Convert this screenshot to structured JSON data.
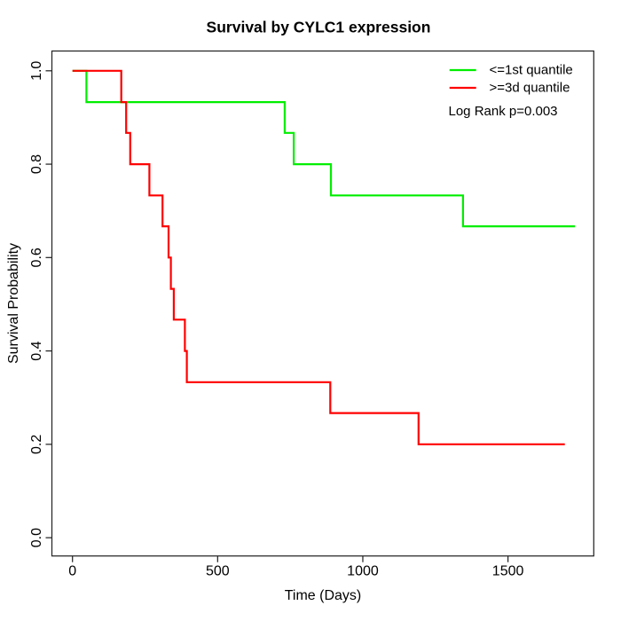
{
  "chart_data": {
    "type": "line",
    "variant": "kaplan_meier_step",
    "title": "Survival by CYLC1 expression",
    "xlabel": "Time (Days)",
    "ylabel": "Survival Probability",
    "x_ticks": [
      "0",
      "500",
      "1000",
      "1500"
    ],
    "y_ticks": [
      "0.0",
      "0.2",
      "0.4",
      "0.6",
      "0.8",
      "1.0"
    ],
    "xlim": [
      0,
      1795
    ],
    "ylim": [
      0,
      1
    ],
    "grid": false,
    "legend_position": "top-right",
    "annotation": "Log Rank p=0.003",
    "colors": {
      "group_low": "#00ee00",
      "group_high": "#ff0000",
      "frame": "#262626",
      "text": "#000000"
    },
    "series": [
      {
        "name": "<=1st quantile",
        "color": "#00ee00",
        "start": [
          0,
          1.0
        ],
        "events": [
          [
            48,
            0.933
          ],
          [
            731,
            0.867
          ],
          [
            762,
            0.8
          ],
          [
            890,
            0.733
          ],
          [
            1345,
            0.667
          ]
        ],
        "end_time": 1731
      },
      {
        "name": ">=3d quantile",
        "color": "#ff0000",
        "start": [
          0,
          1.0
        ],
        "events": [
          [
            168,
            0.933
          ],
          [
            185,
            0.867
          ],
          [
            199,
            0.8
          ],
          [
            265,
            0.733
          ],
          [
            310,
            0.667
          ],
          [
            331,
            0.6
          ],
          [
            339,
            0.533
          ],
          [
            349,
            0.467
          ],
          [
            387,
            0.4
          ],
          [
            394,
            0.333
          ],
          [
            888,
            0.267
          ],
          [
            1192,
            0.2
          ]
        ],
        "end_time": 1696
      }
    ]
  }
}
